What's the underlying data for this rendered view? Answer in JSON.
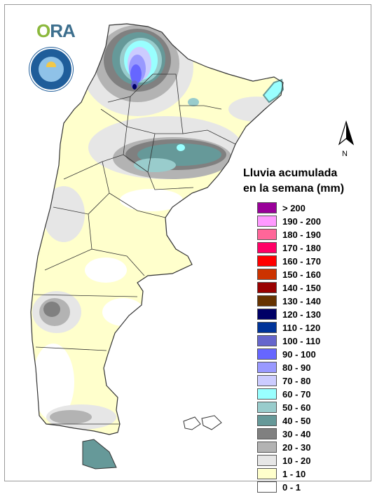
{
  "logos": {
    "ora_text_o": "O",
    "ora_text_rest": "RA",
    "seal_name": "Servicio Meteorológico Nacional Argentina"
  },
  "north": {
    "label": "N"
  },
  "legend": {
    "title_line1": "Lluvia acumulada",
    "title_line2": "en la semana (mm)",
    "items": [
      {
        "label": "> 200",
        "color": "#990099"
      },
      {
        "label": "190 - 200",
        "color": "#ff99ff"
      },
      {
        "label": "180 - 190",
        "color": "#ff6699"
      },
      {
        "label": "170 - 180",
        "color": "#ff0066"
      },
      {
        "label": "160 - 170",
        "color": "#ff0000"
      },
      {
        "label": "150 - 160",
        "color": "#cc3300"
      },
      {
        "label": "140 - 150",
        "color": "#990000"
      },
      {
        "label": "130 - 140",
        "color": "#663300"
      },
      {
        "label": "120 - 130",
        "color": "#000066"
      },
      {
        "label": "110 - 120",
        "color": "#003399"
      },
      {
        "label": "100 - 110",
        "color": "#6666cc"
      },
      {
        "label": "90 - 100",
        "color": "#6666ff"
      },
      {
        "label": "80 - 90",
        "color": "#9999ff"
      },
      {
        "label": "70 - 80",
        "color": "#ccccff"
      },
      {
        "label": "60 - 70",
        "color": "#99ffff"
      },
      {
        "label": "50 - 60",
        "color": "#99cccc"
      },
      {
        "label": "40 - 50",
        "color": "#669999"
      },
      {
        "label": "30 - 40",
        "color": "#808080"
      },
      {
        "label": "20 - 30",
        "color": "#b3b3b3"
      },
      {
        "label": "10 - 20",
        "color": "#e6e6e6"
      },
      {
        "label": "1 - 10",
        "color": "#ffffcc"
      },
      {
        "label": "0 - 1",
        "color": "#ffffff"
      }
    ]
  },
  "colors": {
    "c0_1": "#ffffff",
    "c1_10": "#ffffcc",
    "c10_20": "#e6e6e6",
    "c20_30": "#b3b3b3",
    "c30_40": "#808080",
    "c40_50": "#669999",
    "c50_60": "#99cccc",
    "c60_70": "#99ffff",
    "c70_80": "#ccccff",
    "c80_90": "#9999ff",
    "c90_100": "#6666ff",
    "c100_110": "#6666cc",
    "c120_130": "#000066",
    "border": "#333333"
  }
}
